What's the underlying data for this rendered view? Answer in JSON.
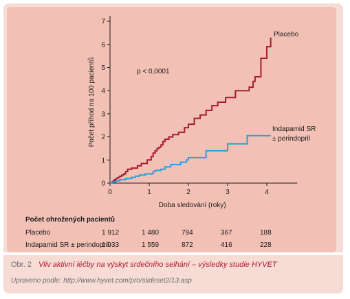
{
  "chart_data": {
    "type": "line",
    "step": true,
    "xlabel": "Doba sledování (roky)",
    "ylabel": "Počet příhod na 100 pacientů",
    "xlim": [
      0,
      4.6
    ],
    "ylim": [
      0,
      7
    ],
    "xticks": [
      0,
      1,
      2,
      3,
      4
    ],
    "yticks": [
      0,
      1,
      2,
      3,
      4,
      5,
      6,
      7
    ],
    "grid": false,
    "annotations": [
      {
        "text": "p < 0,0001",
        "x": 0.7,
        "y": 4.9
      }
    ],
    "series": [
      {
        "name": "Placebo",
        "color": "#a51c30",
        "x": [
          0,
          0.05,
          0.08,
          0.12,
          0.15,
          0.2,
          0.25,
          0.3,
          0.35,
          0.4,
          0.45,
          0.55,
          0.7,
          0.8,
          0.95,
          1.05,
          1.1,
          1.15,
          1.2,
          1.25,
          1.3,
          1.35,
          1.4,
          1.5,
          1.6,
          1.75,
          1.9,
          2.0,
          2.15,
          2.3,
          2.45,
          2.6,
          2.75,
          2.95,
          3.2,
          3.45,
          3.55,
          3.65,
          3.7,
          3.85,
          4.0,
          4.1
        ],
        "y": [
          0,
          0.05,
          0.1,
          0.15,
          0.2,
          0.25,
          0.3,
          0.35,
          0.4,
          0.5,
          0.6,
          0.65,
          0.75,
          0.85,
          1.0,
          1.15,
          1.3,
          1.4,
          1.5,
          1.55,
          1.65,
          1.8,
          1.9,
          2.0,
          2.1,
          2.2,
          2.4,
          2.55,
          2.8,
          2.95,
          3.15,
          3.35,
          3.5,
          3.7,
          4.0,
          4.0,
          4.15,
          4.4,
          4.6,
          5.4,
          5.9,
          6.3
        ]
      },
      {
        "name": "Indapamid SR ± perindopril",
        "color": "#2b9fd9",
        "x": [
          0,
          0.05,
          0.15,
          0.25,
          0.4,
          0.55,
          0.65,
          0.75,
          0.9,
          1.1,
          1.15,
          1.3,
          1.4,
          1.55,
          1.8,
          1.95,
          2.0,
          2.45,
          3.0,
          3.5,
          4.1
        ],
        "y": [
          0,
          0.05,
          0.1,
          0.15,
          0.2,
          0.25,
          0.3,
          0.35,
          0.4,
          0.5,
          0.55,
          0.6,
          0.7,
          0.8,
          0.9,
          1.0,
          1.1,
          1.4,
          1.7,
          2.05,
          2.05
        ]
      }
    ]
  },
  "labels": {
    "placebo": "Placebo",
    "indapamid_line1": "Indapamid SR",
    "indapamid_line2": "± perindopril",
    "pvalue": "p < 0,0001"
  },
  "risk_table": {
    "title": "Počet ohrožených pacientů",
    "rows": [
      {
        "label": "Placebo",
        "values": [
          "1 912",
          "1 480",
          "794",
          "367",
          "188"
        ]
      },
      {
        "label": "Indapamid SR ± perindopril",
        "values": [
          "1 933",
          "1 559",
          "872",
          "416",
          "228"
        ]
      }
    ]
  },
  "caption": {
    "figure": "Obr. 2",
    "title": "Vliv aktivní léčby na výskyt srdečního selhání – výsledky studie HYVET",
    "source": "Upraveno podle: http://www.hyvet.com/pro/slideset2/13.asp"
  },
  "colors": {
    "panel": "#f7dcd5",
    "plot_bg": "#f2c0b4",
    "placebo": "#a51c30",
    "indapamid": "#2b9fd9",
    "caption_title": "#b0152a"
  }
}
